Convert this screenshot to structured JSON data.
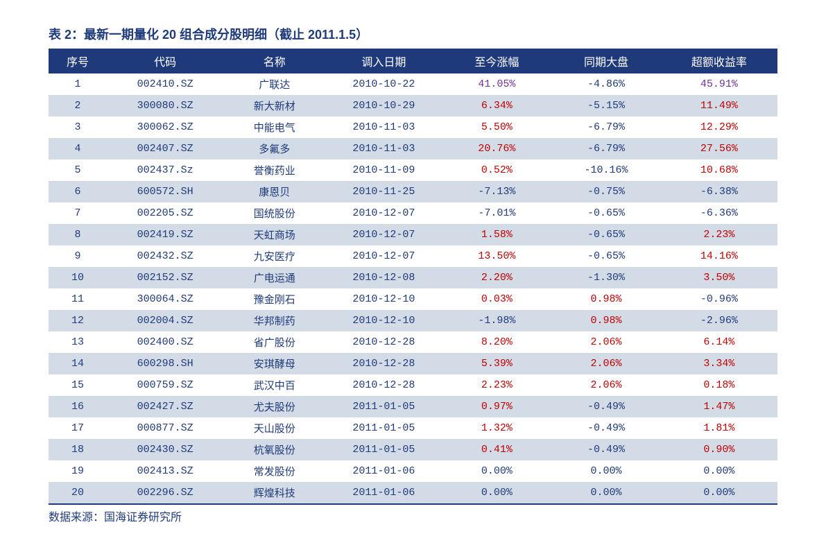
{
  "title": "表 2：最新一期量化 20 组合成分股明细（截止 2011.1.5）",
  "footer": "数据来源：国海证券研究所",
  "colors": {
    "header_bg": "#1f3a7a",
    "header_text": "#ffffff",
    "row_even_bg": "#d3dbe6",
    "row_odd_bg": "#ffffff",
    "text_navy": "#1f3a7a",
    "text_red": "#c00000",
    "text_purple": "#7030a0"
  },
  "table": {
    "type": "table",
    "columns": [
      "序号",
      "代码",
      "名称",
      "调入日期",
      "至今涨幅",
      "同期大盘",
      "超额收益率"
    ],
    "col_widths_pct": [
      8,
      16,
      14,
      16,
      15,
      15,
      16
    ],
    "rows": [
      {
        "seq": "1",
        "code": "002410.SZ",
        "name": "广联达",
        "date": "2010-10-22",
        "gain": {
          "v": "41.05%",
          "c": "purple"
        },
        "market": {
          "v": "-4.86%",
          "c": "navy"
        },
        "excess": {
          "v": "45.91%",
          "c": "purple"
        }
      },
      {
        "seq": "2",
        "code": "300080.SZ",
        "name": "新大新材",
        "date": "2010-10-29",
        "gain": {
          "v": "6.34%",
          "c": "red"
        },
        "market": {
          "v": "-5.15%",
          "c": "navy"
        },
        "excess": {
          "v": "11.49%",
          "c": "red"
        }
      },
      {
        "seq": "3",
        "code": "300062.SZ",
        "name": "中能电气",
        "date": "2010-11-03",
        "gain": {
          "v": "5.50%",
          "c": "red"
        },
        "market": {
          "v": "-6.79%",
          "c": "navy"
        },
        "excess": {
          "v": "12.29%",
          "c": "red"
        }
      },
      {
        "seq": "4",
        "code": "002407.SZ",
        "name": "多氟多",
        "date": "2010-11-03",
        "gain": {
          "v": "20.76%",
          "c": "red"
        },
        "market": {
          "v": "-6.79%",
          "c": "navy"
        },
        "excess": {
          "v": "27.56%",
          "c": "red"
        }
      },
      {
        "seq": "5",
        "code": "002437.Sz",
        "name": "誉衡药业",
        "date": "2010-11-09",
        "gain": {
          "v": "0.52%",
          "c": "red"
        },
        "market": {
          "v": "-10.16%",
          "c": "navy"
        },
        "excess": {
          "v": "10.68%",
          "c": "red"
        }
      },
      {
        "seq": "6",
        "code": "600572.SH",
        "name": "康恩贝",
        "date": "2010-11-25",
        "gain": {
          "v": "-7.13%",
          "c": "navy"
        },
        "market": {
          "v": "-0.75%",
          "c": "navy"
        },
        "excess": {
          "v": "-6.38%",
          "c": "navy"
        }
      },
      {
        "seq": "7",
        "code": "002205.SZ",
        "name": "国统股份",
        "date": "2010-12-07",
        "gain": {
          "v": "-7.01%",
          "c": "navy"
        },
        "market": {
          "v": "-0.65%",
          "c": "navy"
        },
        "excess": {
          "v": "-6.36%",
          "c": "navy"
        }
      },
      {
        "seq": "8",
        "code": "002419.SZ",
        "name": "天虹商场",
        "date": "2010-12-07",
        "gain": {
          "v": "1.58%",
          "c": "red"
        },
        "market": {
          "v": "-0.65%",
          "c": "navy"
        },
        "excess": {
          "v": "2.23%",
          "c": "red"
        }
      },
      {
        "seq": "9",
        "code": "002432.SZ",
        "name": "九安医疗",
        "date": "2010-12-07",
        "gain": {
          "v": "13.50%",
          "c": "red"
        },
        "market": {
          "v": "-0.65%",
          "c": "navy"
        },
        "excess": {
          "v": "14.16%",
          "c": "red"
        }
      },
      {
        "seq": "10",
        "code": "002152.SZ",
        "name": "广电运通",
        "date": "2010-12-08",
        "gain": {
          "v": "2.20%",
          "c": "red"
        },
        "market": {
          "v": "-1.30%",
          "c": "navy"
        },
        "excess": {
          "v": "3.50%",
          "c": "red"
        }
      },
      {
        "seq": "11",
        "code": "300064.SZ",
        "name": "豫金刚石",
        "date": "2010-12-10",
        "gain": {
          "v": "0.03%",
          "c": "red"
        },
        "market": {
          "v": "0.98%",
          "c": "red"
        },
        "excess": {
          "v": "-0.96%",
          "c": "navy"
        }
      },
      {
        "seq": "12",
        "code": "002004.SZ",
        "name": "华邦制药",
        "date": "2010-12-10",
        "gain": {
          "v": "-1.98%",
          "c": "navy"
        },
        "market": {
          "v": "0.98%",
          "c": "red"
        },
        "excess": {
          "v": "-2.96%",
          "c": "navy"
        }
      },
      {
        "seq": "13",
        "code": "002400.SZ",
        "name": "省广股份",
        "date": "2010-12-28",
        "gain": {
          "v": "8.20%",
          "c": "red"
        },
        "market": {
          "v": "2.06%",
          "c": "red"
        },
        "excess": {
          "v": "6.14%",
          "c": "red"
        }
      },
      {
        "seq": "14",
        "code": "600298.SH",
        "name": "安琪酵母",
        "date": "2010-12-28",
        "gain": {
          "v": "5.39%",
          "c": "red"
        },
        "market": {
          "v": "2.06%",
          "c": "red"
        },
        "excess": {
          "v": "3.34%",
          "c": "red"
        }
      },
      {
        "seq": "15",
        "code": "000759.SZ",
        "name": "武汉中百",
        "date": "2010-12-28",
        "gain": {
          "v": "2.23%",
          "c": "red"
        },
        "market": {
          "v": "2.06%",
          "c": "red"
        },
        "excess": {
          "v": "0.18%",
          "c": "red"
        }
      },
      {
        "seq": "16",
        "code": "002427.SZ",
        "name": "尤夫股份",
        "date": "2011-01-05",
        "gain": {
          "v": "0.97%",
          "c": "red"
        },
        "market": {
          "v": "-0.49%",
          "c": "navy"
        },
        "excess": {
          "v": "1.47%",
          "c": "red"
        }
      },
      {
        "seq": "17",
        "code": "000877.SZ",
        "name": "天山股份",
        "date": "2011-01-05",
        "gain": {
          "v": "1.32%",
          "c": "red"
        },
        "market": {
          "v": "-0.49%",
          "c": "navy"
        },
        "excess": {
          "v": "1.81%",
          "c": "red"
        }
      },
      {
        "seq": "18",
        "code": "002430.SZ",
        "name": "杭氧股份",
        "date": "2011-01-05",
        "gain": {
          "v": "0.41%",
          "c": "red"
        },
        "market": {
          "v": "-0.49%",
          "c": "navy"
        },
        "excess": {
          "v": "0.90%",
          "c": "red"
        }
      },
      {
        "seq": "19",
        "code": "002413.SZ",
        "name": "常发股份",
        "date": "2011-01-06",
        "gain": {
          "v": "0.00%",
          "c": "navy"
        },
        "market": {
          "v": "0.00%",
          "c": "navy"
        },
        "excess": {
          "v": "0.00%",
          "c": "navy"
        }
      },
      {
        "seq": "20",
        "code": "002296.SZ",
        "name": "辉煌科技",
        "date": "2011-01-06",
        "gain": {
          "v": "0.00%",
          "c": "navy"
        },
        "market": {
          "v": "0.00%",
          "c": "navy"
        },
        "excess": {
          "v": "0.00%",
          "c": "navy"
        }
      }
    ]
  }
}
